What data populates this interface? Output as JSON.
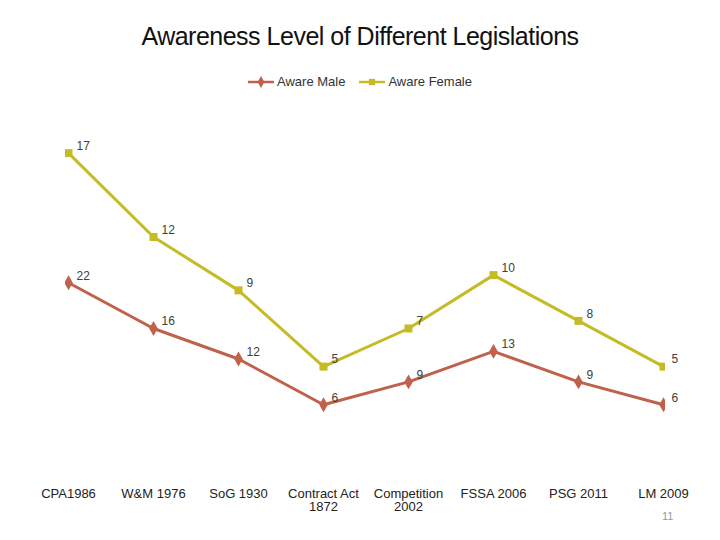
{
  "chart_data": {
    "type": "line",
    "title": "Awareness Level of Different Legislations",
    "categories": [
      "CPA1986",
      "W&M 1976",
      "SoG 1930",
      "Contract Act\n1872",
      "Competition\n2002",
      "FSSA 2006",
      "PSG 2011",
      "LM 2009"
    ],
    "series": [
      {
        "name": "Aware Male",
        "color": "#c0614b",
        "marker": "diamond",
        "values": [
          22,
          16,
          12,
          6,
          9,
          13,
          9,
          6
        ]
      },
      {
        "name": "Aware Female",
        "color": "#c4bb25",
        "marker": "square",
        "values": [
          17,
          12,
          9,
          5,
          7,
          10,
          8,
          5
        ]
      }
    ],
    "stacked": true,
    "data_labels": true,
    "tick_labels": "x",
    "legend": "top",
    "ylim": [
      0,
      40
    ],
    "annotations": [
      "11"
    ]
  }
}
